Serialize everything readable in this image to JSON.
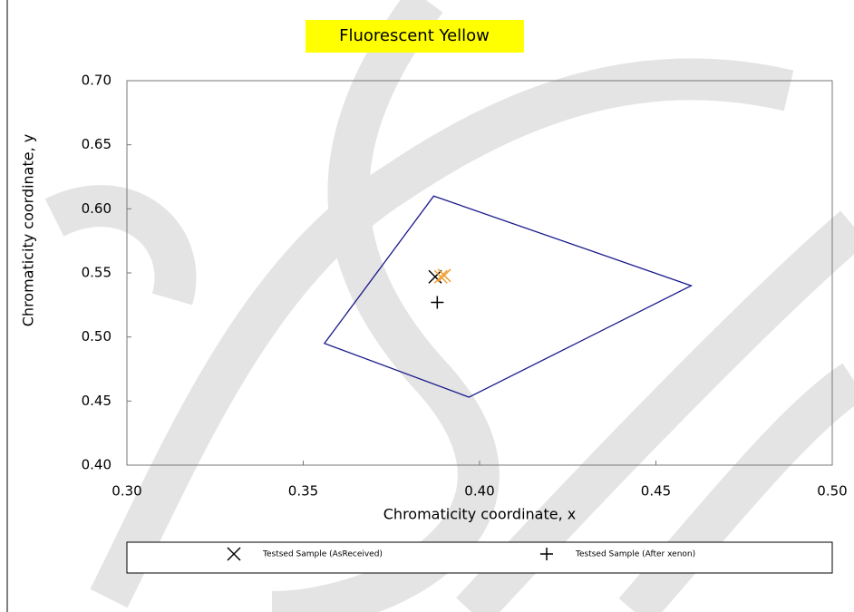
{
  "chart_data": {
    "type": "scatter",
    "title": "Fluorescent Yellow",
    "x_label": "Chromaticity coordinate, x",
    "y_label": "Chromaticity coordinate, y",
    "xlim": [
      0.3,
      0.5
    ],
    "ylim": [
      0.4,
      0.7
    ],
    "xticks": [
      {
        "value": 0.3,
        "label": "0.30"
      },
      0.35,
      {
        "value": 0.4,
        "label": "0.40"
      },
      0.45,
      {
        "value": 0.5,
        "label": "0.50"
      }
    ],
    "yticks": [
      {
        "value": 0.4,
        "label": "0.40"
      },
      0.45,
      {
        "value": 0.5,
        "label": "0.50"
      },
      0.55,
      {
        "value": 0.6,
        "label": "0.60"
      },
      0.65,
      {
        "value": 0.7,
        "label": "0.70"
      }
    ],
    "boundary": {
      "color": "#1a1a8c",
      "x": [
        0.387,
        0.46,
        0.397,
        0.356
      ],
      "y": [
        0.61,
        0.54,
        0.453,
        0.495
      ]
    },
    "series": [
      {
        "name": "Testsed Sample (AsReceived)",
        "marker": "x",
        "color": "#000000",
        "x": [
          0.3874
        ],
        "y": [
          0.547
        ]
      },
      {
        "marker": "x",
        "color": "#f0a030",
        "x": [
          0.389,
          0.39
        ],
        "y": [
          0.547,
          0.548
        ]
      },
      {
        "name": "Testsed Sample (After xenon)",
        "marker": "+",
        "color": "#000000",
        "x": [
          0.388
        ],
        "y": [
          0.527
        ]
      }
    ]
  }
}
